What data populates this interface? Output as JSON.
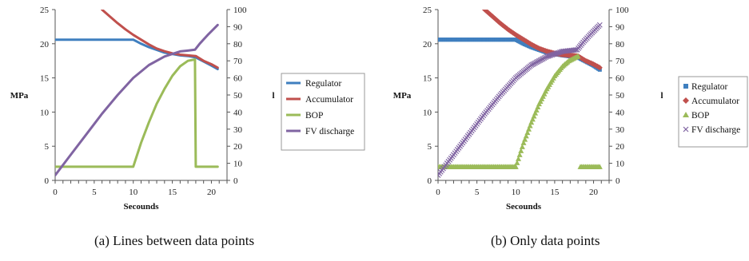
{
  "captions": {
    "a": "(a) Lines between data points",
    "b": "(b) Only data points"
  },
  "colors": {
    "Regulator": "#3f7fbf",
    "Accumulator": "#c0504d",
    "BOP": "#9bbb59",
    "FV discharge": "#8064a2",
    "legend_border": "#999999"
  },
  "chart_data": [
    {
      "type": "line",
      "subtitle": "(a) Lines between data points",
      "title": "",
      "xlabel": "Secounds",
      "ylabel": "MPa",
      "y2label": "l",
      "xlim": [
        0,
        22
      ],
      "ylim": [
        0,
        25
      ],
      "y2lim": [
        0,
        100
      ],
      "xticks": [
        0,
        5,
        10,
        15,
        20
      ],
      "yticks": [
        0,
        5,
        10,
        15,
        20,
        25
      ],
      "y2ticks": [
        0,
        10,
        20,
        30,
        40,
        50,
        60,
        70,
        80,
        90,
        100
      ],
      "grid": false,
      "legend": "right",
      "series": [
        {
          "name": "Regulator",
          "axis": "left",
          "marker": "line",
          "x": [
            0,
            10,
            11,
            12,
            13,
            14,
            15,
            16,
            17,
            18,
            19,
            20,
            20.8
          ],
          "y": [
            20.6,
            20.6,
            20.0,
            19.5,
            19.1,
            18.7,
            18.5,
            18.3,
            18.2,
            18.0,
            17.4,
            16.8,
            16.3
          ]
        },
        {
          "name": "Accumulator",
          "axis": "left",
          "marker": "line",
          "x": [
            6,
            7,
            8,
            9,
            10,
            11,
            12,
            13,
            14,
            15,
            16,
            17,
            18,
            19,
            20,
            20.8
          ],
          "y": [
            25.0,
            24.0,
            23.0,
            22.1,
            21.3,
            20.6,
            19.9,
            19.3,
            18.9,
            18.6,
            18.4,
            18.3,
            18.2,
            17.5,
            17.0,
            16.5
          ]
        },
        {
          "name": "BOP",
          "axis": "left",
          "marker": "line",
          "x": [
            0,
            10,
            11,
            12,
            13,
            14,
            15,
            16,
            17,
            17.9,
            18.0,
            18.3,
            20.8
          ],
          "y": [
            2,
            2,
            5.5,
            8.5,
            11.2,
            13.4,
            15.3,
            16.7,
            17.5,
            17.7,
            2,
            2,
            2
          ]
        },
        {
          "name": "FV discharge",
          "axis": "right",
          "marker": "line",
          "x": [
            0,
            2,
            4,
            6,
            8,
            10,
            12,
            14,
            15,
            16,
            17,
            17.9,
            18.5,
            19.5,
            20.8
          ],
          "y": [
            3,
            15,
            27,
            39,
            50,
            60,
            67.5,
            72.5,
            74,
            75.5,
            76,
            76.5,
            80,
            85,
            91
          ]
        }
      ]
    },
    {
      "type": "scatter",
      "subtitle": "(b) Only data points",
      "title": "",
      "xlabel": "Secounds",
      "ylabel": "MPa",
      "y2label": "l",
      "xlim": [
        0,
        22
      ],
      "ylim": [
        0,
        25
      ],
      "y2lim": [
        0,
        100
      ],
      "xticks": [
        0,
        5,
        10,
        15,
        20
      ],
      "yticks": [
        0,
        5,
        10,
        15,
        20,
        25
      ],
      "y2ticks": [
        0,
        10,
        20,
        30,
        40,
        50,
        60,
        70,
        80,
        90,
        100
      ],
      "grid": false,
      "legend": "right",
      "series": [
        {
          "name": "Regulator",
          "axis": "left",
          "marker": "square",
          "x": [
            0,
            10,
            11,
            12,
            13,
            14,
            15,
            16,
            18,
            19,
            20,
            20.8
          ],
          "y": [
            20.6,
            20.6,
            20.0,
            19.5,
            19.1,
            18.7,
            18.5,
            18.3,
            18.0,
            17.4,
            16.8,
            16.2
          ]
        },
        {
          "name": "Accumulator",
          "axis": "left",
          "marker": "diamond",
          "x": [
            6,
            7,
            8,
            9,
            10,
            11,
            12,
            13,
            14,
            15,
            16,
            18,
            19,
            20,
            20.8
          ],
          "y": [
            25.0,
            24.0,
            23.0,
            22.1,
            21.3,
            20.6,
            19.9,
            19.3,
            18.9,
            18.6,
            18.4,
            18.2,
            17.5,
            17.0,
            16.5
          ]
        },
        {
          "name": "BOP",
          "axis": "left",
          "marker": "triangle",
          "x": [
            0,
            10,
            11,
            12,
            13,
            14,
            15,
            16,
            16.8,
            18,
            18.3,
            20.8
          ],
          "y": [
            2,
            2,
            5.5,
            8.5,
            11.2,
            13.4,
            15.3,
            16.7,
            17.5,
            18.2,
            2,
            2
          ]
        },
        {
          "name": "FV discharge",
          "axis": "right",
          "marker": "x",
          "x": [
            0,
            2,
            4,
            6,
            8,
            10,
            12,
            14,
            15,
            16,
            17,
            17.9,
            18.5,
            19.5,
            20.8
          ],
          "y": [
            3,
            15,
            27,
            39,
            50,
            60,
            67.5,
            72.5,
            74,
            75.5,
            76,
            76.5,
            80,
            85,
            91
          ]
        }
      ]
    }
  ]
}
